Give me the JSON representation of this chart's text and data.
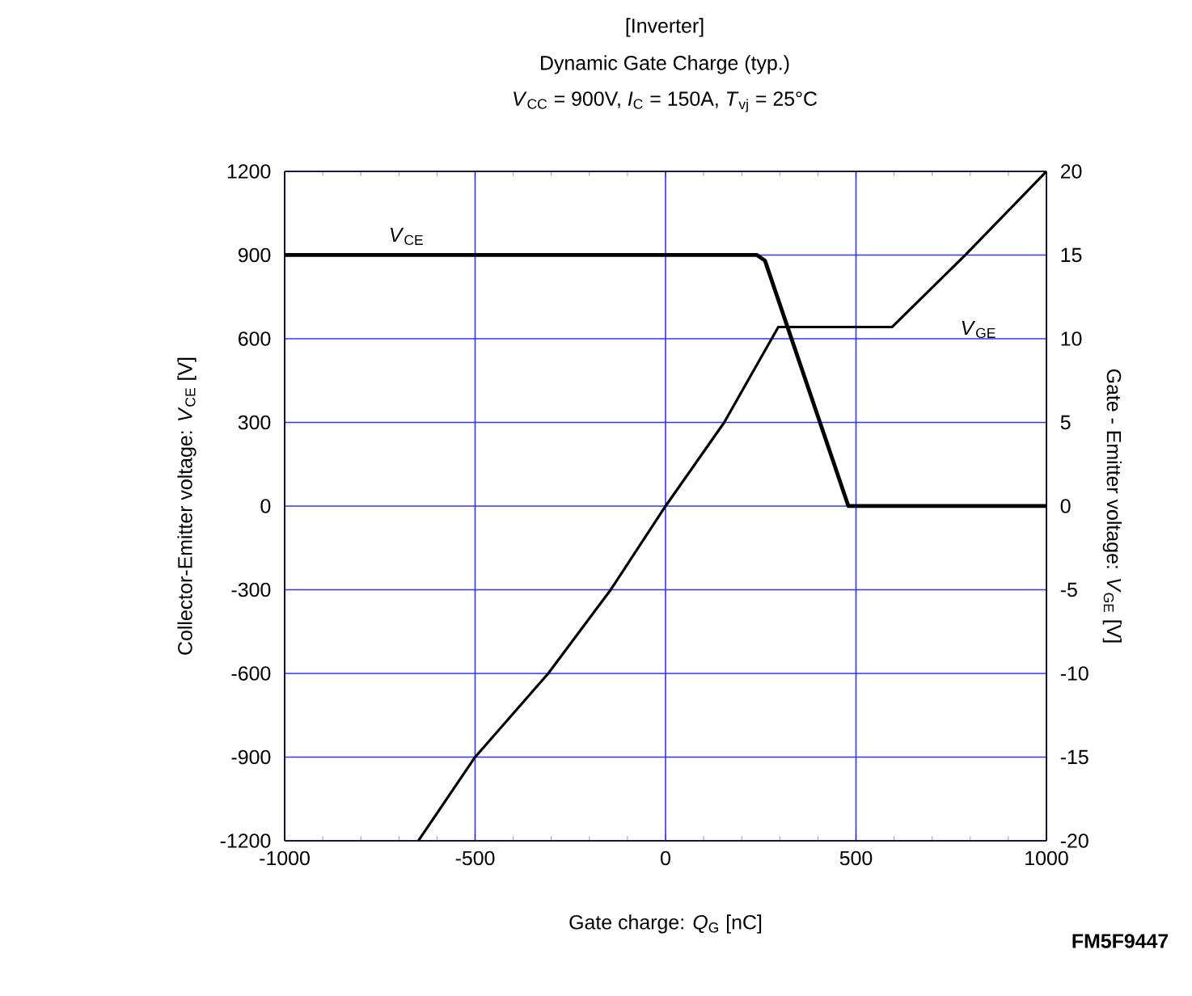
{
  "chart_data": {
    "type": "line",
    "title": "[Inverter]",
    "subtitle": "Dynamic Gate Charge (typ.)",
    "xlabel": "Gate charge: *Q*$_{G}$ [nC]",
    "ylabel": "Collector-Emitter voltage: *V*$_{CE}$ [V]",
    "y2label": "Gate - Emitter voltage: *V*$_{GE}$ [V]",
    "annotations": [
      "*V*$_{CC}$ =   900V,  *I*$_{C}$ =  150A,  *T*$_{vj}$ = 25°C",
      "FM5F9447"
    ],
    "xlim": [
      -1000,
      1000
    ],
    "xticks": [
      -1000,
      -500,
      0,
      500,
      1000
    ],
    "ylim": [
      -1200,
      1200
    ],
    "yticks": [
      -1200,
      -900,
      -600,
      -300,
      0,
      300,
      600,
      900,
      1200
    ],
    "y2lim": [
      -20,
      20
    ],
    "y2ticks": [
      -20,
      -15,
      -10,
      -5,
      0,
      5,
      10,
      15,
      20
    ],
    "grid": true,
    "legend": false,
    "marker": "none",
    "line_style": "solid",
    "series": [
      {
        "name": "*V*$_{CE}$",
        "color": "#000000",
        "x": [
          -1000,
          240,
          261,
          480,
          1000
        ],
        "values": [
          900,
          900,
          880,
          0,
          0
        ]
      },
      {
        "name": "*V*$_{GE}$",
        "color": "#000000",
        "axis": "y2",
        "x": [
          -649,
          -500,
          -308,
          -144,
          0,
          154,
          296,
          595,
          787,
          1000
        ],
        "values": [
          -20,
          -15,
          -10,
          -5,
          0,
          5,
          10.7,
          10.7,
          15,
          20
        ]
      }
    ]
  }
}
